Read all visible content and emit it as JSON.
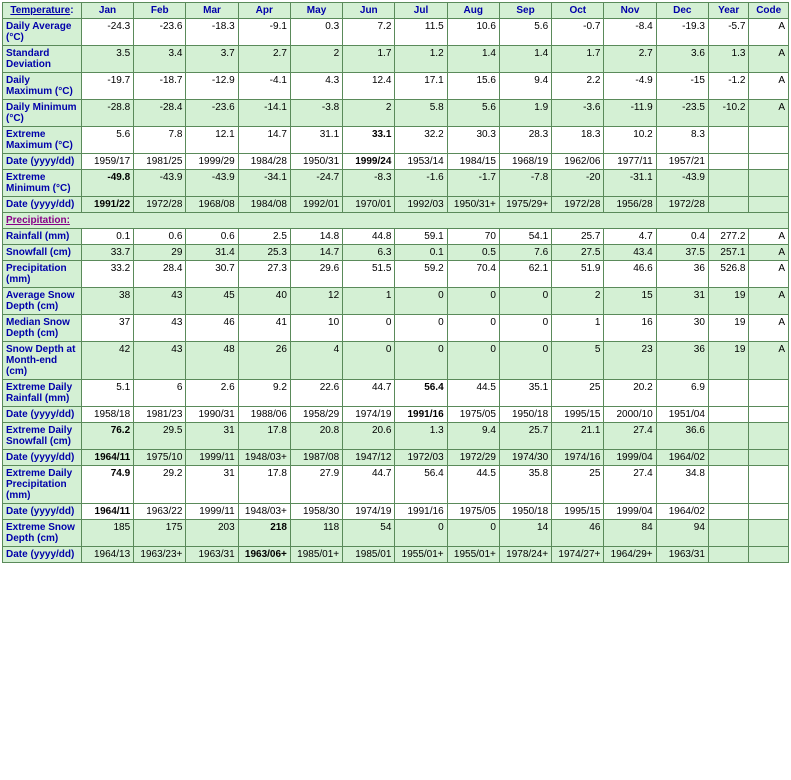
{
  "headers": [
    "Temperature:",
    "Jan",
    "Feb",
    "Mar",
    "Apr",
    "May",
    "Jun",
    "Jul",
    "Aug",
    "Sep",
    "Oct",
    "Nov",
    "Dec",
    "Year",
    "Code"
  ],
  "section2": "Precipitation:",
  "rows": [
    {
      "label": "Daily Average (°C)",
      "cls": "white",
      "bold": [],
      "cells": [
        "-24.3",
        "-23.6",
        "-18.3",
        "-9.1",
        "0.3",
        "7.2",
        "11.5",
        "10.6",
        "5.6",
        "-0.7",
        "-8.4",
        "-19.3",
        "-5.7",
        "A"
      ]
    },
    {
      "label": "Standard Deviation",
      "cls": "green",
      "bold": [],
      "cells": [
        "3.5",
        "3.4",
        "3.7",
        "2.7",
        "2",
        "1.7",
        "1.2",
        "1.4",
        "1.4",
        "1.7",
        "2.7",
        "3.6",
        "1.3",
        "A"
      ]
    },
    {
      "label": "Daily Maximum (°C)",
      "cls": "white",
      "bold": [],
      "cells": [
        "-19.7",
        "-18.7",
        "-12.9",
        "-4.1",
        "4.3",
        "12.4",
        "17.1",
        "15.6",
        "9.4",
        "2.2",
        "-4.9",
        "-15",
        "-1.2",
        "A"
      ]
    },
    {
      "label": "Daily Minimum (°C)",
      "cls": "green",
      "bold": [],
      "cells": [
        "-28.8",
        "-28.4",
        "-23.6",
        "-14.1",
        "-3.8",
        "2",
        "5.8",
        "5.6",
        "1.9",
        "-3.6",
        "-11.9",
        "-23.5",
        "-10.2",
        "A"
      ]
    },
    {
      "label": "Extreme Maximum (°C)",
      "cls": "white",
      "bold": [
        5
      ],
      "cells": [
        "5.6",
        "7.8",
        "12.1",
        "14.7",
        "31.1",
        "33.1",
        "32.2",
        "30.3",
        "28.3",
        "18.3",
        "10.2",
        "8.3",
        "",
        ""
      ]
    },
    {
      "label": "Date (yyyy/dd)",
      "cls": "white",
      "bold": [
        5
      ],
      "cells": [
        "1959/17",
        "1981/25",
        "1999/29",
        "1984/28",
        "1950/31",
        "1999/24",
        "1953/14",
        "1984/15",
        "1968/19",
        "1962/06",
        "1977/11",
        "1957/21",
        "",
        ""
      ]
    },
    {
      "label": "Extreme Minimum (°C)",
      "cls": "green",
      "bold": [
        0
      ],
      "cells": [
        "-49.8",
        "-43.9",
        "-43.9",
        "-34.1",
        "-24.7",
        "-8.3",
        "-1.6",
        "-1.7",
        "-7.8",
        "-20",
        "-31.1",
        "-43.9",
        "",
        ""
      ]
    },
    {
      "label": "Date (yyyy/dd)",
      "cls": "green",
      "bold": [
        0
      ],
      "cells": [
        "1991/22",
        "1972/28",
        "1968/08",
        "1984/08",
        "1992/01",
        "1970/01",
        "1992/03",
        "1950/31+",
        "1975/29+",
        "1972/28",
        "1956/28",
        "1972/28",
        "",
        ""
      ]
    }
  ],
  "rows2": [
    {
      "label": "Rainfall (mm)",
      "cls": "white",
      "bold": [],
      "cells": [
        "0.1",
        "0.6",
        "0.6",
        "2.5",
        "14.8",
        "44.8",
        "59.1",
        "70",
        "54.1",
        "25.7",
        "4.7",
        "0.4",
        "277.2",
        "A"
      ]
    },
    {
      "label": "Snowfall (cm)",
      "cls": "green",
      "bold": [],
      "cells": [
        "33.7",
        "29",
        "31.4",
        "25.3",
        "14.7",
        "6.3",
        "0.1",
        "0.5",
        "7.6",
        "27.5",
        "43.4",
        "37.5",
        "257.1",
        "A"
      ]
    },
    {
      "label": "Precipitation (mm)",
      "cls": "white",
      "bold": [],
      "cells": [
        "33.2",
        "28.4",
        "30.7",
        "27.3",
        "29.6",
        "51.5",
        "59.2",
        "70.4",
        "62.1",
        "51.9",
        "46.6",
        "36",
        "526.8",
        "A"
      ]
    },
    {
      "label": "Average Snow Depth (cm)",
      "cls": "green",
      "bold": [],
      "cells": [
        "38",
        "43",
        "45",
        "40",
        "12",
        "1",
        "0",
        "0",
        "0",
        "2",
        "15",
        "31",
        "19",
        "A"
      ]
    },
    {
      "label": "Median Snow Depth (cm)",
      "cls": "white",
      "bold": [],
      "cells": [
        "37",
        "43",
        "46",
        "41",
        "10",
        "0",
        "0",
        "0",
        "0",
        "1",
        "16",
        "30",
        "19",
        "A"
      ]
    },
    {
      "label": "Snow Depth at Month-end (cm)",
      "cls": "green",
      "bold": [],
      "cells": [
        "42",
        "43",
        "48",
        "26",
        "4",
        "0",
        "0",
        "0",
        "0",
        "5",
        "23",
        "36",
        "19",
        "A"
      ]
    },
    {
      "label": "Extreme Daily Rainfall (mm)",
      "cls": "white",
      "bold": [
        6
      ],
      "cells": [
        "5.1",
        "6",
        "2.6",
        "9.2",
        "22.6",
        "44.7",
        "56.4",
        "44.5",
        "35.1",
        "25",
        "20.2",
        "6.9",
        "",
        ""
      ]
    },
    {
      "label": "Date (yyyy/dd)",
      "cls": "white",
      "bold": [
        6
      ],
      "cells": [
        "1958/18",
        "1981/23",
        "1990/31",
        "1988/06",
        "1958/29",
        "1974/19",
        "1991/16",
        "1975/05",
        "1950/18",
        "1995/15",
        "2000/10",
        "1951/04",
        "",
        ""
      ]
    },
    {
      "label": "Extreme Daily Snowfall (cm)",
      "cls": "green",
      "bold": [
        0
      ],
      "cells": [
        "76.2",
        "29.5",
        "31",
        "17.8",
        "20.8",
        "20.6",
        "1.3",
        "9.4",
        "25.7",
        "21.1",
        "27.4",
        "36.6",
        "",
        ""
      ]
    },
    {
      "label": "Date (yyyy/dd)",
      "cls": "green",
      "bold": [
        0
      ],
      "cells": [
        "1964/11",
        "1975/10",
        "1999/11",
        "1948/03+",
        "1987/08",
        "1947/12",
        "1972/03",
        "1972/29",
        "1974/30",
        "1974/16",
        "1999/04",
        "1964/02",
        "",
        ""
      ]
    },
    {
      "label": "Extreme Daily Precipitation (mm)",
      "cls": "white",
      "bold": [
        0
      ],
      "cells": [
        "74.9",
        "29.2",
        "31",
        "17.8",
        "27.9",
        "44.7",
        "56.4",
        "44.5",
        "35.8",
        "25",
        "27.4",
        "34.8",
        "",
        ""
      ]
    },
    {
      "label": "Date (yyyy/dd)",
      "cls": "white",
      "bold": [
        0
      ],
      "cells": [
        "1964/11",
        "1963/22",
        "1999/11",
        "1948/03+",
        "1958/30",
        "1974/19",
        "1991/16",
        "1975/05",
        "1950/18",
        "1995/15",
        "1999/04",
        "1964/02",
        "",
        ""
      ]
    },
    {
      "label": "Extreme Snow Depth (cm)",
      "cls": "green",
      "bold": [
        3
      ],
      "cells": [
        "185",
        "175",
        "203",
        "218",
        "118",
        "54",
        "0",
        "0",
        "14",
        "46",
        "84",
        "94",
        "",
        ""
      ]
    },
    {
      "label": "Date (yyyy/dd)",
      "cls": "green",
      "bold": [
        3
      ],
      "cells": [
        "1964/13",
        "1963/23+",
        "1963/31",
        "1963/06+",
        "1985/01+",
        "1985/01",
        "1955/01+",
        "1955/01+",
        "1978/24+",
        "1974/27+",
        "1964/29+",
        "1963/31",
        "",
        ""
      ]
    }
  ]
}
